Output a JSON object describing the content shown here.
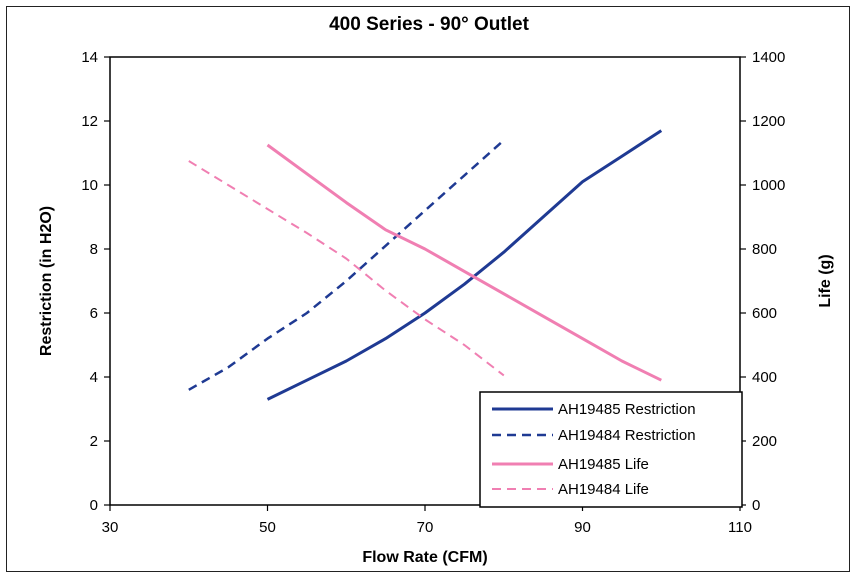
{
  "chart_data": {
    "type": "line",
    "title": "400 Series - 90° Outlet",
    "xlabel": "Flow Rate (CFM)",
    "ylabel": "Restriction (in H2O)",
    "y2label": "Life (g)",
    "xlim": [
      30,
      110
    ],
    "ylim": [
      0,
      14
    ],
    "y2lim": [
      0,
      1400
    ],
    "xticks": [
      "30",
      "50",
      "70",
      "90",
      "110"
    ],
    "yticks": [
      "0",
      "2",
      "4",
      "6",
      "8",
      "10",
      "12",
      "14"
    ],
    "y2ticks": [
      "0",
      "200",
      "400",
      "600",
      "800",
      "1000",
      "1200",
      "1400"
    ],
    "grid": false,
    "legend_position": "bottom-right",
    "series": [
      {
        "name": "AH19485 Restriction",
        "axis": "left",
        "color": "#1f3a93",
        "dash": "solid",
        "x": [
          50,
          55,
          60,
          65,
          70,
          75,
          80,
          85,
          90,
          95,
          100
        ],
        "y": [
          3.3,
          3.9,
          4.5,
          5.2,
          6.0,
          6.9,
          7.9,
          9.0,
          10.1,
          10.9,
          11.7
        ]
      },
      {
        "name": "AH19484 Restriction",
        "axis": "left",
        "color": "#1f3a93",
        "dash": "dashed",
        "x": [
          40,
          45,
          50,
          55,
          60,
          65,
          70,
          75,
          80
        ],
        "y": [
          3.6,
          4.3,
          5.2,
          6.0,
          7.0,
          8.1,
          9.2,
          10.3,
          11.4
        ]
      },
      {
        "name": "AH19485 Life",
        "axis": "right",
        "color": "#f07fb2",
        "dash": "solid",
        "x": [
          50,
          55,
          60,
          65,
          70,
          75,
          80,
          85,
          90,
          95,
          100
        ],
        "y": [
          1125,
          1035,
          945,
          860,
          800,
          730,
          660,
          590,
          520,
          450,
          390
        ]
      },
      {
        "name": "AH19484 Life",
        "axis": "right",
        "color": "#f07fb2",
        "dash": "dashed",
        "x": [
          40,
          45,
          50,
          55,
          60,
          65,
          70,
          75,
          80
        ],
        "y": [
          1075,
          1000,
          925,
          850,
          770,
          670,
          580,
          500,
          405
        ]
      }
    ]
  }
}
